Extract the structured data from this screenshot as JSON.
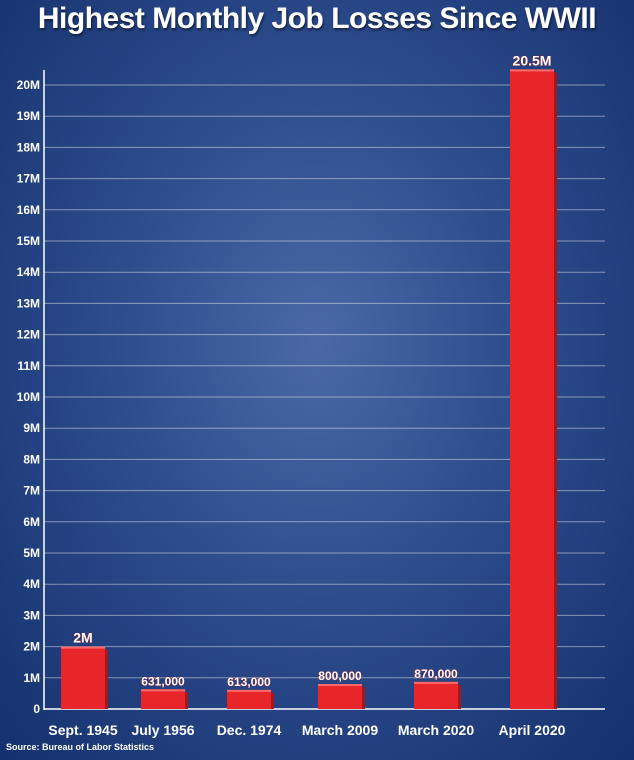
{
  "chart_data": {
    "type": "bar",
    "title": "Highest Monthly Job Losses Since WWII",
    "categories": [
      "Sept. 1945",
      "July 1956",
      "Dec. 1974",
      "March 2009",
      "March 2020",
      "April 2020"
    ],
    "values": [
      2000000,
      631000,
      613000,
      800000,
      870000,
      20500000
    ],
    "data_labels": [
      "2M",
      "631,000",
      "613,000",
      "800,000",
      "870,000",
      "20.5M"
    ],
    "y_ticks": [
      0,
      1000000,
      2000000,
      3000000,
      4000000,
      5000000,
      6000000,
      7000000,
      8000000,
      9000000,
      10000000,
      11000000,
      12000000,
      13000000,
      14000000,
      15000000,
      16000000,
      17000000,
      18000000,
      19000000,
      20000000
    ],
    "y_tick_labels": [
      "0",
      "1M",
      "2M",
      "3M",
      "4M",
      "5M",
      "6M",
      "7M",
      "8M",
      "9M",
      "10M",
      "11M",
      "12M",
      "13M",
      "14M",
      "15M",
      "16M",
      "17M",
      "18M",
      "19M",
      "20M"
    ],
    "ylim": [
      0,
      20500000
    ],
    "xlabel": "",
    "ylabel": "",
    "grid": true,
    "colors": {
      "bar": "#e8262a",
      "bar_side": "#a8161a",
      "grid": "#ffffff",
      "label_text": "#ffffff"
    }
  },
  "source": "Source: Bureau of Labor Statistics"
}
